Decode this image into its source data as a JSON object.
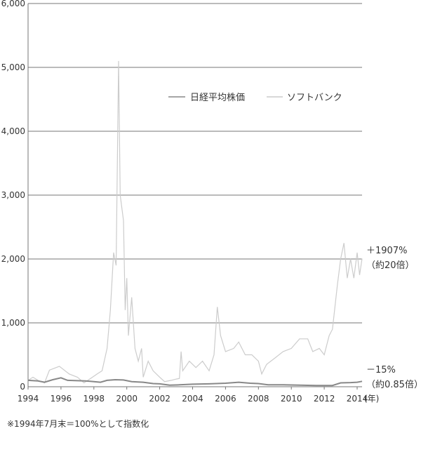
{
  "chart_data": {
    "type": "line",
    "title": "",
    "xlabel": "(年)",
    "ylabel": "",
    "xlim": [
      1994,
      2014.3
    ],
    "ylim": [
      0,
      6000
    ],
    "grid": "horizontal",
    "legend_position": "top-right",
    "y_ticks": [
      "0",
      "1,000",
      "2,000",
      "3,000",
      "4,000",
      "5,000",
      "6,000"
    ],
    "y_tick_values": [
      0,
      1000,
      2000,
      3000,
      4000,
      5000,
      6000
    ],
    "x_ticks": [
      "1994",
      "1996",
      "1998",
      "2000",
      "2002",
      "2004",
      "2006",
      "2008",
      "2010",
      "2012",
      "2014"
    ],
    "x_tick_values": [
      1994,
      1996,
      1998,
      2000,
      2002,
      2004,
      2006,
      2008,
      2010,
      2012,
      2014
    ],
    "series": [
      {
        "name": "日経平均株価",
        "color": "#888888",
        "x": [
          1994.0,
          1994.6,
          1995.0,
          1995.5,
          1996.0,
          1996.4,
          1997.0,
          1997.5,
          1998.0,
          1998.4,
          1998.8,
          1999.3,
          1999.8,
          2000.3,
          2001.0,
          2001.6,
          2002.0,
          2002.6,
          2003.2,
          2004.0,
          2005.0,
          2006.0,
          2006.8,
          2007.5,
          2008.0,
          2008.6,
          2009.5,
          2010.5,
          2011.5,
          2012.5,
          2013.0,
          2013.6,
          2014.0,
          2014.3
        ],
        "y": [
          100,
          90,
          70,
          110,
          140,
          100,
          95,
          90,
          80,
          70,
          100,
          110,
          105,
          80,
          70,
          50,
          45,
          25,
          30,
          40,
          45,
          55,
          70,
          55,
          50,
          30,
          30,
          25,
          20,
          20,
          60,
          65,
          70,
          85
        ]
      },
      {
        "name": "ソフトバンク",
        "color": "#cccccc",
        "x": [
          1994.0,
          1994.3,
          1994.6,
          1995.0,
          1995.3,
          1995.9,
          1996.5,
          1997.0,
          1997.4,
          1997.8,
          1998.2,
          1998.5,
          1998.8,
          1999.0,
          1999.2,
          1999.35,
          1999.5,
          1999.6,
          1999.8,
          1999.9,
          2000.0,
          2000.1,
          2000.3,
          2000.5,
          2000.7,
          2000.9,
          2001.0,
          2001.3,
          2001.6,
          2002.0,
          2002.3,
          2002.7,
          2003.0,
          2003.2,
          2003.3,
          2003.4,
          2003.8,
          2004.2,
          2004.6,
          2005.0,
          2005.3,
          2005.5,
          2005.7,
          2006.0,
          2006.5,
          2006.8,
          2007.2,
          2007.6,
          2008.0,
          2008.2,
          2008.5,
          2009.0,
          2009.5,
          2010.0,
          2010.5,
          2011.0,
          2011.3,
          2011.7,
          2012.0,
          2012.3,
          2012.5,
          2012.8,
          2013.0,
          2013.2,
          2013.4,
          2013.6,
          2013.8,
          2014.0,
          2014.15,
          2014.3
        ],
        "y": [
          100,
          150,
          100,
          60,
          260,
          320,
          200,
          150,
          60,
          130,
          200,
          250,
          600,
          1200,
          2100,
          1900,
          5100,
          3000,
          2600,
          1200,
          1700,
          800,
          1400,
          600,
          400,
          600,
          150,
          400,
          250,
          150,
          80,
          100,
          120,
          130,
          550,
          250,
          400,
          300,
          400,
          250,
          500,
          1250,
          800,
          550,
          600,
          700,
          500,
          500,
          400,
          200,
          350,
          450,
          550,
          600,
          750,
          750,
          550,
          600,
          500,
          800,
          900,
          1600,
          2000,
          2250,
          1700,
          2000,
          1700,
          2100,
          1750,
          2007
        ]
      }
    ],
    "annotations": {
      "softbank_change": "＋1907%",
      "softbank_multiple": "（約20倍）",
      "nikkei_change": "－15%",
      "nikkei_multiple": "（約0.85倍）"
    },
    "footnote": "※1994年7月末＝100%として指数化"
  }
}
